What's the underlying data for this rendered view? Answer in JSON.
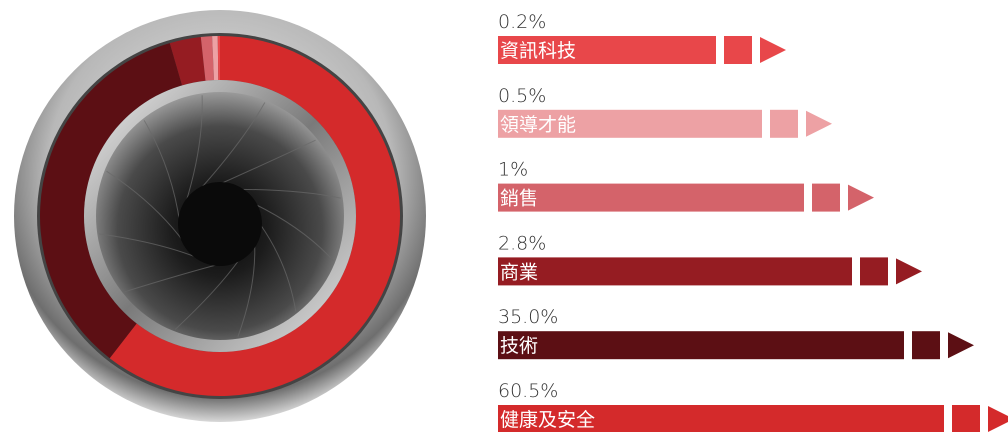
{
  "chart_data": {
    "type": "pie",
    "categories": [
      "資訊科技",
      "領導才能",
      "銷售",
      "商業",
      "技術",
      "健康及安全"
    ],
    "values": [
      0.2,
      0.5,
      1,
      2.8,
      35.0,
      60.5
    ],
    "value_labels": [
      "0.2%",
      "0.5%",
      "1%",
      "2.8%",
      "35.0%",
      "60.5%"
    ],
    "colors": [
      "#e8474a",
      "#eda1a4",
      "#d4636a",
      "#951c22",
      "#5c0f14",
      "#d42a2b"
    ]
  }
}
